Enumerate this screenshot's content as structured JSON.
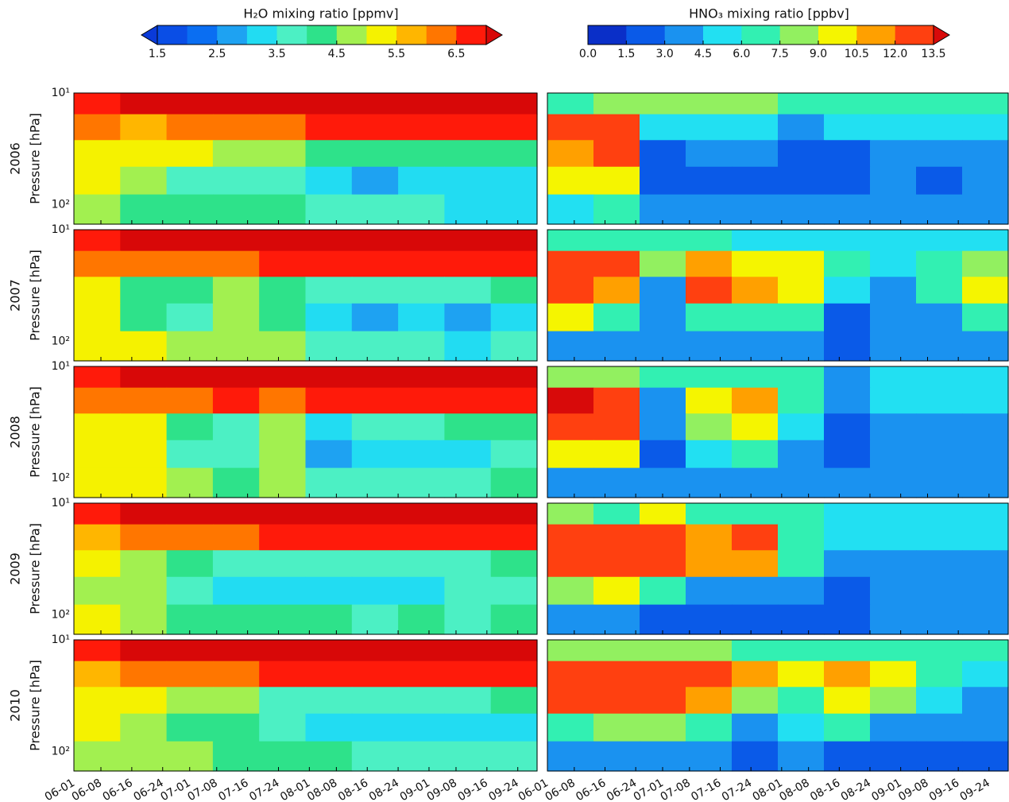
{
  "chart_data": {
    "type": "contour",
    "colorbars": [
      {
        "title": "H₂O mixing ratio [ppmv]",
        "levels": [
          1.5,
          2,
          2.5,
          3,
          3.5,
          4,
          4.5,
          5,
          5.5,
          6,
          6.5,
          7
        ],
        "colors": [
          "#0a4ee6",
          "#0a6ef2",
          "#1ea2f2",
          "#22dcf2",
          "#4cf0c4",
          "#2ee28a",
          "#a2f050",
          "#f5f200",
          "#ffb600",
          "#ff7600",
          "#ff1a0a"
        ],
        "under_color": "#0a3ad8",
        "over_color": "#d80808",
        "ticks": [
          1.5,
          2.5,
          3.5,
          4.5,
          5.5,
          6.5
        ]
      },
      {
        "title": "HNO₃ mixing ratio [ppbv]",
        "levels": [
          0,
          1.5,
          3,
          4.5,
          6,
          7.5,
          9,
          10.5,
          12,
          13.5
        ],
        "colors": [
          "#0a2fc8",
          "#0a5ae8",
          "#1a92f0",
          "#22e0f2",
          "#32f0b2",
          "#92f060",
          "#f5f500",
          "#ffa000",
          "#ff4010"
        ],
        "over_color": "#d80a0a",
        "ticks": [
          {
            "value": 0,
            "label": "0.0"
          },
          1.5,
          {
            "value": 3,
            "label": "3.0"
          },
          4.5,
          {
            "value": 6,
            "label": "6.0"
          },
          7.5,
          {
            "value": 9,
            "label": "9.0"
          },
          10.5,
          {
            "value": 12,
            "label": "12.0"
          },
          13.5
        ]
      }
    ],
    "row_labels": [
      "2006",
      "2007",
      "2008",
      "2009",
      "2010"
    ],
    "ylabel": "Pressure [hPa]",
    "log_y": true,
    "ylim": [
      10,
      150
    ],
    "yticks": [
      {
        "value": 10,
        "label": "10¹"
      },
      {
        "value": 100,
        "label": "10²"
      }
    ],
    "xlim": [
      0,
      120
    ],
    "xticks": [
      {
        "value": 0,
        "label": "06-01"
      },
      {
        "value": 7,
        "label": "06-08"
      },
      {
        "value": 15,
        "label": "06-16"
      },
      {
        "value": 23,
        "label": "06-24"
      },
      {
        "value": 30,
        "label": "07-01"
      },
      {
        "value": 37,
        "label": "07-08"
      },
      {
        "value": 45,
        "label": "07-16"
      },
      {
        "value": 53,
        "label": "07-24"
      },
      {
        "value": 61,
        "label": "08-01"
      },
      {
        "value": 68,
        "label": "08-08"
      },
      {
        "value": 76,
        "label": "08-16"
      },
      {
        "value": 84,
        "label": "08-24"
      },
      {
        "value": 92,
        "label": "09-01"
      },
      {
        "value": 99,
        "label": "09-08"
      },
      {
        "value": 107,
        "label": "09-16"
      },
      {
        "value": 115,
        "label": "09-24"
      }
    ],
    "x": [
      6,
      18,
      30,
      42,
      54,
      66,
      78,
      90,
      102,
      114
    ],
    "p": [
      12,
      20,
      35,
      60,
      110
    ],
    "fields": [
      [
        [
          [
            6.8,
            7.1,
            7.2,
            7.1,
            7.0,
            7.1,
            7.1,
            7.2,
            7.2,
            7.2
          ],
          [
            6.0,
            5.8,
            6.3,
            6.4,
            6.4,
            6.5,
            6.6,
            6.6,
            6.7,
            6.7
          ],
          [
            5.4,
            5.3,
            5.0,
            4.8,
            4.6,
            4.3,
            4.0,
            4.2,
            4.1,
            4.2
          ],
          [
            5.0,
            4.6,
            3.6,
            3.8,
            3.8,
            3.4,
            2.7,
            3.2,
            3.3,
            3.3
          ],
          [
            4.6,
            4.4,
            4.2,
            4.2,
            4.0,
            3.7,
            3.5,
            3.6,
            3.4,
            3.3
          ]
        ],
        [
          [
            7,
            8,
            7.5,
            8,
            8,
            7,
            7,
            7,
            6.5,
            6.5
          ],
          [
            13,
            13,
            5,
            4.5,
            5,
            4,
            4.5,
            5,
            5,
            5
          ],
          [
            11,
            12,
            2,
            3,
            4,
            2,
            2.5,
            3.5,
            3,
            3
          ],
          [
            9,
            10,
            1.5,
            2.5,
            2,
            1.5,
            2,
            3,
            2.5,
            3
          ],
          [
            5,
            6,
            3,
            3,
            3,
            3,
            3,
            4,
            3.5,
            3.5
          ]
        ]
      ],
      [
        [
          [
            6.7,
            7.1,
            7.1,
            7.0,
            7.0,
            7.1,
            7.2,
            7.2,
            7.2,
            7.2
          ],
          [
            6.0,
            6.0,
            6.3,
            6.4,
            6.5,
            6.6,
            6.6,
            6.6,
            6.7,
            6.6
          ],
          [
            5.0,
            4.4,
            4.3,
            4.8,
            4.2,
            3.8,
            3.6,
            3.7,
            3.8,
            4.0
          ],
          [
            5.1,
            4.4,
            3.8,
            4.5,
            4.0,
            3.2,
            2.9,
            3.1,
            2.8,
            3.3
          ],
          [
            5.2,
            5.0,
            4.6,
            4.8,
            4.6,
            3.8,
            3.5,
            3.6,
            3.2,
            3.5
          ]
        ],
        [
          [
            6,
            7,
            6,
            6,
            5,
            5,
            5,
            5,
            5,
            5
          ],
          [
            13,
            12,
            8,
            11,
            10,
            9,
            7,
            5,
            7,
            8
          ],
          [
            13,
            11,
            4,
            12,
            11,
            10,
            5,
            4,
            6,
            9
          ],
          [
            9,
            7,
            3,
            7,
            6,
            7,
            2,
            3,
            3,
            7
          ],
          [
            3,
            3,
            3,
            3,
            4,
            4,
            2,
            3,
            3,
            4
          ]
        ]
      ],
      [
        [
          [
            6.8,
            7.2,
            7.2,
            7.1,
            7.1,
            7.2,
            7.2,
            7.2,
            7.2,
            7.2
          ],
          [
            6.2,
            6.0,
            6.4,
            6.5,
            6.3,
            6.5,
            6.6,
            6.6,
            6.6,
            6.7
          ],
          [
            5.3,
            5.2,
            4.2,
            3.8,
            4.9,
            3.3,
            3.8,
            3.8,
            4.0,
            4.1
          ],
          [
            5.1,
            5.0,
            3.9,
            3.5,
            4.8,
            2.8,
            3.2,
            3.4,
            3.1,
            3.6
          ],
          [
            5.0,
            5.0,
            4.6,
            4.2,
            4.7,
            3.6,
            3.9,
            3.9,
            3.7,
            4.0
          ]
        ],
        [
          [
            8,
            8,
            6,
            7,
            7,
            6,
            4,
            5,
            5,
            5
          ],
          [
            14,
            13,
            4,
            10,
            11,
            6,
            3,
            5,
            5,
            5
          ],
          [
            12,
            13,
            3,
            8,
            10,
            5,
            2,
            4,
            4,
            4
          ],
          [
            10,
            9,
            2,
            5,
            6,
            3,
            2,
            3,
            3,
            3
          ],
          [
            4,
            4,
            3,
            4,
            4,
            3,
            3,
            4,
            4,
            4
          ]
        ]
      ],
      [
        [
          [
            6.9,
            7.1,
            7.2,
            7.1,
            7.2,
            7.2,
            7.1,
            7.2,
            7.2,
            7.2
          ],
          [
            5.8,
            6.0,
            6.3,
            6.4,
            6.5,
            6.5,
            6.6,
            6.6,
            6.6,
            6.7
          ],
          [
            5.0,
            4.7,
            4.0,
            3.9,
            3.8,
            3.8,
            3.7,
            3.9,
            3.9,
            4.0
          ],
          [
            4.9,
            4.7,
            3.6,
            3.3,
            3.3,
            3.2,
            3.4,
            3.4,
            3.5,
            3.5
          ],
          [
            5.0,
            4.8,
            4.4,
            4.1,
            4.0,
            4.0,
            3.9,
            4.0,
            3.9,
            4.0
          ]
        ],
        [
          [
            8,
            7,
            9,
            7,
            6,
            6,
            5,
            5,
            5,
            5
          ],
          [
            12,
            13,
            13,
            11,
            12,
            7,
            5,
            5,
            5,
            5
          ],
          [
            12,
            13,
            12,
            11,
            11,
            6,
            3,
            4,
            4,
            4
          ],
          [
            8,
            9,
            6,
            4,
            4,
            3,
            2,
            3,
            3,
            3
          ],
          [
            4,
            3,
            2,
            2,
            2,
            2,
            2,
            3,
            3,
            3
          ]
        ]
      ],
      [
        [
          [
            6.9,
            7.1,
            7.1,
            7.1,
            7.2,
            7.2,
            7.2,
            7.2,
            7.1,
            7.2
          ],
          [
            5.8,
            6.0,
            6.1,
            6.2,
            6.5,
            6.6,
            6.6,
            6.7,
            6.6,
            6.8
          ],
          [
            5.3,
            5.0,
            4.6,
            4.5,
            3.8,
            3.8,
            3.7,
            3.9,
            3.8,
            4.0
          ],
          [
            5.0,
            4.8,
            4.1,
            4.2,
            3.5,
            3.3,
            3.2,
            3.0,
            3.2,
            3.3
          ],
          [
            4.9,
            4.8,
            4.5,
            4.4,
            4.0,
            4.0,
            3.8,
            3.6,
            3.7,
            3.7
          ]
        ],
        [
          [
            8,
            8,
            8,
            8,
            7,
            7,
            6,
            7,
            6,
            6
          ],
          [
            13,
            13,
            13,
            12,
            11,
            10,
            11,
            9,
            6,
            5
          ],
          [
            13,
            13,
            12,
            11,
            8,
            7,
            9,
            8,
            5,
            4
          ],
          [
            7,
            8,
            8,
            6,
            4,
            5,
            6,
            3,
            3,
            3
          ],
          [
            3,
            3,
            3,
            3,
            2,
            3,
            2,
            2,
            2,
            2
          ]
        ]
      ]
    ]
  }
}
